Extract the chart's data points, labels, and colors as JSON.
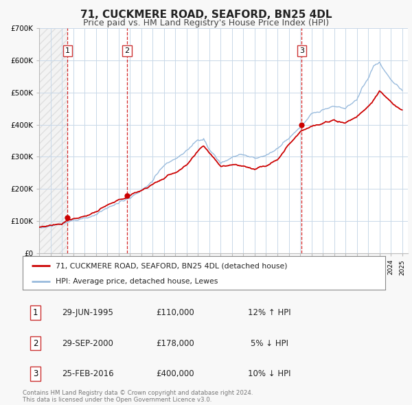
{
  "title": "71, CUCKMERE ROAD, SEAFORD, BN25 4DL",
  "subtitle": "Price paid vs. HM Land Registry's House Price Index (HPI)",
  "ylim": [
    0,
    700000
  ],
  "yticks": [
    0,
    100000,
    200000,
    300000,
    400000,
    500000,
    600000,
    700000
  ],
  "ytick_labels": [
    "£0",
    "£100K",
    "£200K",
    "£300K",
    "£400K",
    "£500K",
    "£600K",
    "£700K"
  ],
  "sale_color": "#cc0000",
  "hpi_color": "#99bbdd",
  "sale_label": "71, CUCKMERE ROAD, SEAFORD, BN25 4DL (detached house)",
  "hpi_label": "HPI: Average price, detached house, Lewes",
  "transactions": [
    {
      "number": 1,
      "date_float": 1995.496,
      "price": 110000
    },
    {
      "number": 2,
      "date_float": 2000.747,
      "price": 178000
    },
    {
      "number": 3,
      "date_float": 2016.143,
      "price": 400000
    }
  ],
  "transaction_display": [
    {
      "number": 1,
      "date_str": "29-JUN-1995",
      "price_str": "£110,000",
      "hpi_str": "12% ↑ HPI"
    },
    {
      "number": 2,
      "date_str": "29-SEP-2000",
      "price_str": "£178,000",
      "hpi_str": "5% ↓ HPI"
    },
    {
      "number": 3,
      "date_str": "25-FEB-2016",
      "price_str": "£400,000",
      "hpi_str": "10% ↓ HPI"
    }
  ],
  "footer": "Contains HM Land Registry data © Crown copyright and database right 2024.\nThis data is licensed under the Open Government Licence v3.0.",
  "background_color": "#f8f8f8",
  "plot_background": "#ffffff",
  "grid_color": "#c8d8e8",
  "xmin": 1993.0,
  "xmax": 2025.5,
  "hpi_anchors_x": [
    1993.0,
    1994.0,
    1995.0,
    1996.0,
    1997.0,
    1998.0,
    1999.0,
    2000.0,
    2001.0,
    2002.0,
    2003.0,
    2004.0,
    2005.0,
    2006.0,
    2007.0,
    2007.5,
    2008.0,
    2009.0,
    2010.0,
    2011.0,
    2012.0,
    2013.0,
    2014.0,
    2015.0,
    2016.0,
    2017.0,
    2018.0,
    2019.0,
    2020.0,
    2021.0,
    2021.5,
    2022.0,
    2022.5,
    2023.0,
    2023.5,
    2024.0,
    2024.5,
    2025.0
  ],
  "hpi_anchors_y": [
    82000,
    86000,
    92000,
    100000,
    110000,
    118000,
    135000,
    152000,
    170000,
    195000,
    225000,
    262000,
    285000,
    310000,
    345000,
    355000,
    320000,
    275000,
    295000,
    305000,
    295000,
    300000,
    330000,
    360000,
    395000,
    440000,
    455000,
    465000,
    460000,
    490000,
    530000,
    555000,
    600000,
    610000,
    580000,
    560000,
    545000,
    525000
  ],
  "pp_anchors_x": [
    1993.0,
    1995.0,
    1995.496,
    1997.0,
    1999.0,
    2000.747,
    2002.0,
    2004.0,
    2006.0,
    2007.0,
    2007.5,
    2008.5,
    2009.0,
    2010.0,
    2011.0,
    2012.0,
    2013.0,
    2014.0,
    2015.0,
    2016.143,
    2017.0,
    2018.0,
    2019.0,
    2020.0,
    2021.0,
    2022.0,
    2023.0,
    2023.5,
    2024.0,
    2024.5,
    2025.0
  ],
  "pp_anchors_y": [
    80000,
    95000,
    110000,
    125000,
    155000,
    178000,
    200000,
    240000,
    278000,
    315000,
    330000,
    290000,
    270000,
    280000,
    275000,
    268000,
    278000,
    305000,
    350000,
    400000,
    415000,
    420000,
    430000,
    425000,
    445000,
    480000,
    525000,
    510000,
    490000,
    475000,
    465000
  ]
}
